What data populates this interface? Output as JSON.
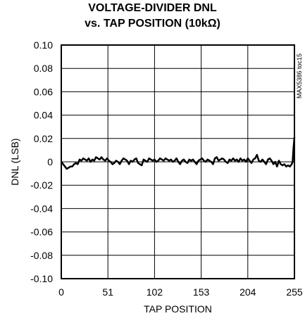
{
  "chart_data": {
    "type": "line",
    "title_lines": [
      "VOLTAGE-DIVIDER DNL",
      "vs. TAP POSITION (10kΩ)"
    ],
    "xlabel": "TAP POSITION",
    "ylabel": "DNL (LSB)",
    "xlim": [
      0,
      255
    ],
    "ylim": [
      -0.1,
      0.1
    ],
    "xticks": [
      0,
      51,
      102,
      153,
      204,
      255
    ],
    "xtick_labels": [
      "0",
      "51",
      "102",
      "153",
      "204",
      "255"
    ],
    "yticks": [
      0.1,
      0.08,
      0.06,
      0.04,
      0.02,
      0,
      -0.02,
      -0.04,
      -0.06,
      -0.08,
      -0.1
    ],
    "ytick_labels": [
      "0.10",
      "0.08",
      "0.06",
      "0.04",
      "0.02",
      "0",
      "-0.02",
      "-0.04",
      "-0.06",
      "-0.08",
      "-0.10"
    ],
    "grid": true,
    "annotation": "MAX5386 toc15",
    "series": [
      {
        "color": "#000000",
        "x": [
          0,
          2,
          4,
          6,
          8,
          10,
          12,
          14,
          16,
          18,
          20,
          22,
          24,
          26,
          28,
          30,
          32,
          34,
          36,
          38,
          40,
          42,
          44,
          46,
          48,
          50,
          52,
          54,
          56,
          58,
          60,
          62,
          64,
          66,
          68,
          70,
          72,
          74,
          76,
          78,
          80,
          82,
          84,
          86,
          88,
          90,
          92,
          94,
          96,
          98,
          100,
          102,
          104,
          106,
          108,
          110,
          112,
          114,
          116,
          118,
          120,
          122,
          124,
          126,
          128,
          130,
          132,
          134,
          136,
          138,
          140,
          142,
          144,
          146,
          148,
          150,
          152,
          154,
          156,
          158,
          160,
          162,
          164,
          166,
          168,
          170,
          172,
          174,
          176,
          178,
          180,
          182,
          184,
          186,
          188,
          190,
          192,
          194,
          196,
          198,
          200,
          202,
          204,
          206,
          208,
          210,
          212,
          214,
          216,
          218,
          220,
          222,
          224,
          226,
          228,
          230,
          232,
          234,
          236,
          238,
          240,
          242,
          244,
          246,
          248,
          250,
          252,
          253,
          254,
          255
        ],
        "y": [
          0,
          -0.002,
          -0.004,
          -0.006,
          -0.005,
          -0.004,
          -0.004,
          -0.002,
          -0.001,
          -0.002,
          0.002,
          0.001,
          0.003,
          0.002,
          0.001,
          0.003,
          0.0,
          0.002,
          0.001,
          0.004,
          0.003,
          0.002,
          0.004,
          0.002,
          0.001,
          0.003,
          0.001,
          0.0,
          -0.002,
          -0.001,
          0.001,
          0.0,
          -0.002,
          0.001,
          0.003,
          0.002,
          0.001,
          -0.002,
          0.001,
          0.0,
          0.002,
          0.003,
          -0.001,
          -0.002,
          -0.003,
          0.002,
          0.001,
          0.0,
          0.003,
          0.002,
          0.001,
          0.002,
          0.0,
          0.001,
          0.003,
          0.002,
          0.001,
          0.003,
          0.002,
          0.001,
          0.002,
          0.0,
          0.001,
          0.003,
          0.0,
          -0.002,
          0.001,
          0.002,
          0.0,
          -0.001,
          0.002,
          0.001,
          0.002,
          0.0,
          -0.002,
          0.001,
          0.002,
          0.003,
          0.001,
          0.0,
          0.002,
          0.001,
          0.0,
          -0.002,
          0.003,
          0.004,
          0.001,
          0.002,
          0.003,
          0.002,
          0.0,
          -0.001,
          0.002,
          0.001,
          0.003,
          0.001,
          0.002,
          0.0,
          0.003,
          0.001,
          0.002,
          0.0,
          0.003,
          0.001,
          -0.001,
          0.002,
          0.003,
          0.006,
          0.001,
          0.0,
          0.002,
          0.0,
          -0.002,
          0.002,
          0.003,
          0.001,
          -0.002,
          0.0,
          -0.004,
          0.001,
          -0.002,
          -0.003,
          -0.002,
          -0.004,
          -0.003,
          -0.004,
          -0.002,
          0.0,
          0.012,
          0.021
        ]
      }
    ]
  }
}
